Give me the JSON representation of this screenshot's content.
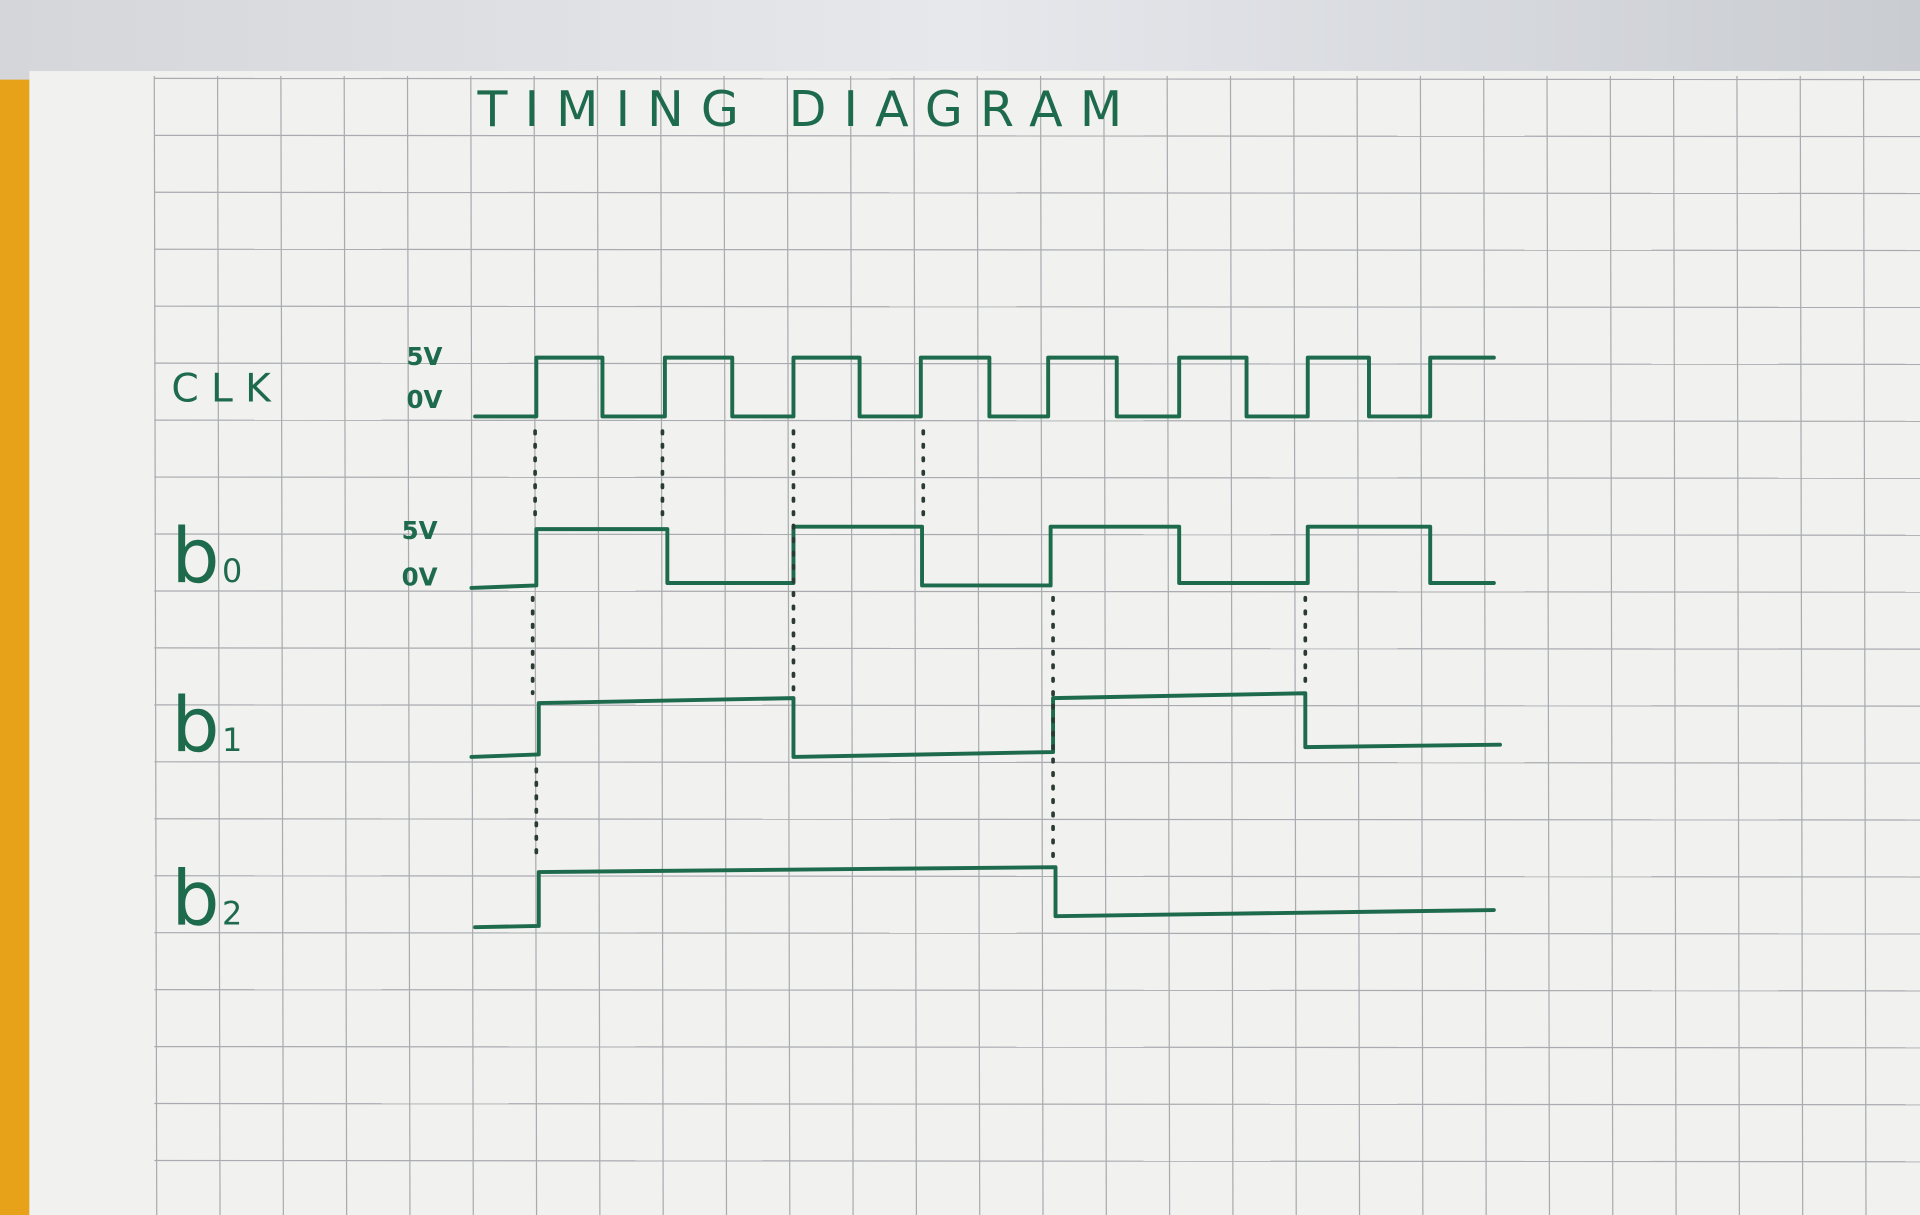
{
  "title": "TIMING DIAGRAM",
  "signals": [
    {
      "name": "CLK",
      "levels": [
        "5V",
        "0V"
      ]
    },
    {
      "name": "b",
      "subscript": "0",
      "levels": [
        "5V",
        "0V"
      ]
    },
    {
      "name": "b",
      "subscript": "1"
    },
    {
      "name": "b",
      "subscript": "2"
    }
  ]
}
